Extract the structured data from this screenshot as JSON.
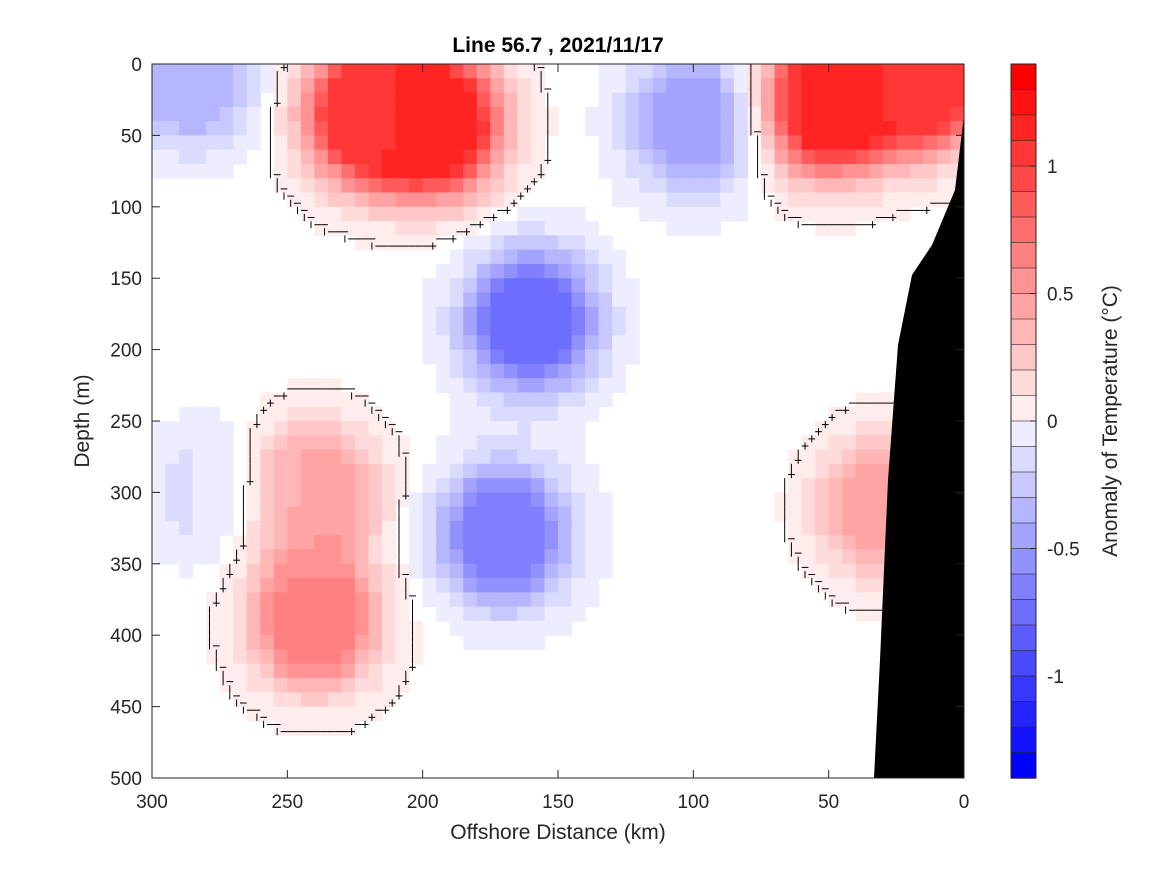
{
  "chart_data": {
    "type": "heatmap",
    "title": "Line 56.7 , 2021/11/17",
    "xlabel": "Offshore Distance (km)",
    "ylabel": "Depth (m)",
    "xlim": [
      300,
      0
    ],
    "ylim": [
      0,
      500
    ],
    "x_direction": "reversed",
    "y_direction": "reversed",
    "x_ticks": [
      300,
      250,
      200,
      150,
      100,
      50,
      0
    ],
    "y_ticks": [
      0,
      50,
      100,
      150,
      200,
      250,
      300,
      350,
      400,
      450,
      500
    ],
    "colorbar": {
      "label": "Anomaly of Temperature (°C)",
      "limits": [
        -1.4,
        1.4
      ],
      "ticks": [
        1,
        0.5,
        0,
        -0.5,
        -1
      ],
      "tick_labels": [
        "1",
        "0.5",
        "0",
        "-0.5",
        "-1"
      ],
      "levels": 28,
      "colormap": "blue-white-red",
      "positive_color": "#ff0000",
      "negative_color": "#0000ff",
      "zero_color": "#ffffff"
    },
    "zero_contour_color": "#000000",
    "bathymetry_color": "#000000",
    "features": [
      {
        "name": "warm layer",
        "x": 220,
        "depth": 35,
        "anomaly": 1.1
      },
      {
        "name": "warm layer",
        "x": 195,
        "depth": 42,
        "anomaly": 1.2
      },
      {
        "name": "warm layer",
        "x": 50,
        "depth": 28,
        "anomaly": 1.2
      },
      {
        "name": "warm layer",
        "x": 15,
        "depth": 12,
        "anomaly": 1.1
      },
      {
        "name": "cold patch",
        "x": 285,
        "depth": 10,
        "anomaly": -0.4
      },
      {
        "name": "cold patch",
        "x": 100,
        "depth": 40,
        "anomaly": -0.5
      },
      {
        "name": "cold core",
        "x": 160,
        "depth": 180,
        "anomaly": -0.8
      },
      {
        "name": "cold core",
        "x": 170,
        "depth": 330,
        "anomaly": -0.7
      },
      {
        "name": "warm column",
        "x": 240,
        "depth": 390,
        "anomaly": 0.7
      },
      {
        "name": "warm column",
        "x": 240,
        "depth": 300,
        "anomaly": 0.5
      },
      {
        "name": "warm slope",
        "x": 30,
        "depth": 310,
        "anomaly": 0.5
      },
      {
        "name": "cool band",
        "x": 280,
        "depth": 300,
        "anomaly": -0.15
      }
    ]
  }
}
